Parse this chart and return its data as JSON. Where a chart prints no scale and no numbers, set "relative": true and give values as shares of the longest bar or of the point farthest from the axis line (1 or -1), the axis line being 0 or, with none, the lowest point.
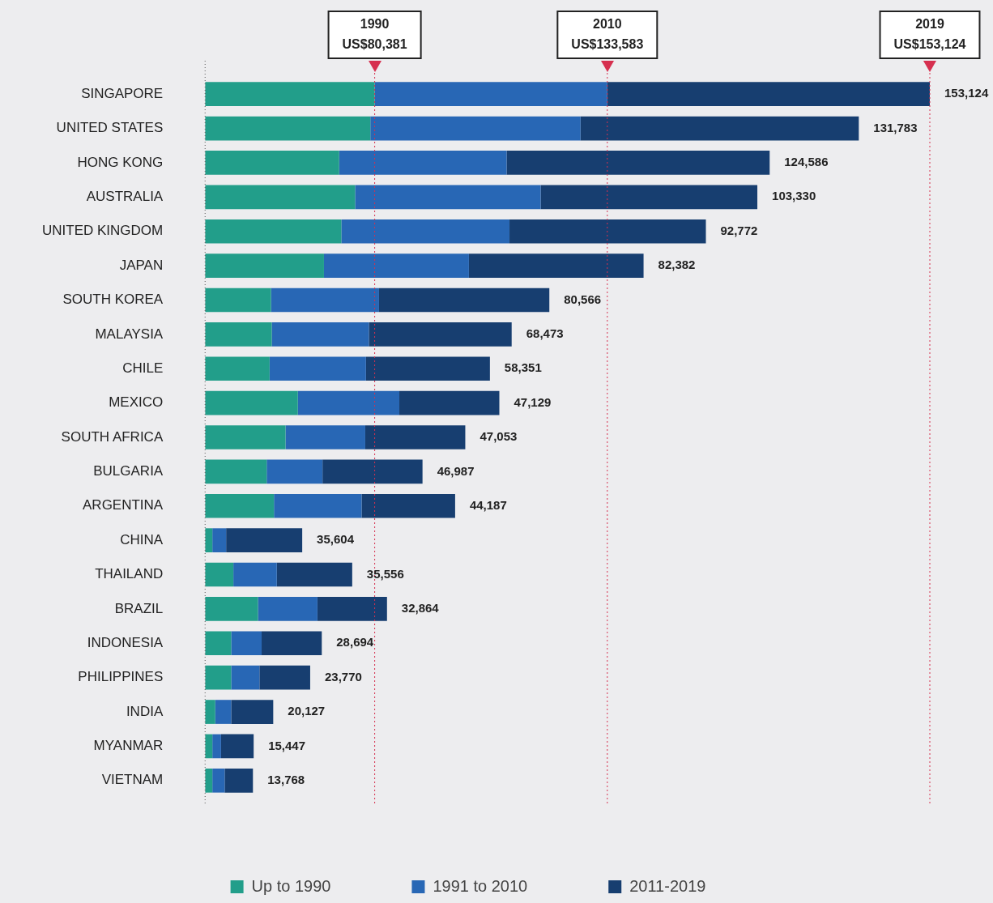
{
  "chart_data": {
    "type": "bar",
    "orientation": "horizontal",
    "stacked": true,
    "relative": true,
    "categories": [
      "SINGAPORE",
      "UNITED STATES",
      "HONG KONG",
      "AUSTRALIA",
      "UNITED KINGDOM",
      "JAPAN",
      "SOUTH KOREA",
      "MALAYSIA",
      "CHILE",
      "MEXICO",
      "SOUTH AFRICA",
      "BULGARIA",
      "ARGENTINA",
      "CHINA",
      "THAILAND",
      "BRAZIL",
      "INDONESIA",
      "PHILIPPINES",
      "INDIA",
      "MYANMAR",
      "VIETNAM"
    ],
    "series": [
      {
        "name": "Up to 1990",
        "color": "#229e8a",
        "values": [
          0.234,
          0.228,
          0.185,
          0.207,
          0.188,
          0.164,
          0.091,
          0.092,
          0.089,
          0.128,
          0.111,
          0.085,
          0.095,
          0.01,
          0.039,
          0.073,
          0.036,
          0.036,
          0.014,
          0.01,
          0.01
        ]
      },
      {
        "name": "1991 to 2010",
        "color": "#2867b5",
        "values": [
          0.321,
          0.29,
          0.231,
          0.256,
          0.232,
          0.2,
          0.149,
          0.134,
          0.133,
          0.14,
          0.11,
          0.077,
          0.121,
          0.019,
          0.06,
          0.082,
          0.042,
          0.039,
          0.022,
          0.012,
          0.017
        ]
      },
      {
        "name": "2011-2019",
        "color": "#173e70",
        "values": [
          0.445,
          0.384,
          0.363,
          0.299,
          0.271,
          0.241,
          0.235,
          0.197,
          0.171,
          0.138,
          0.138,
          0.138,
          0.129,
          0.105,
          0.104,
          0.096,
          0.083,
          0.07,
          0.058,
          0.045,
          0.039
        ]
      }
    ],
    "annotations": [
      {
        "text": "153,124",
        "x": 1.0,
        "y": "SINGAPORE"
      },
      {
        "text": "131,783",
        "x": 0.902,
        "y": "UNITED STATES"
      },
      {
        "text": "124,586",
        "x": 0.779,
        "y": "HONG KONG"
      },
      {
        "text": "103,330",
        "x": 0.762,
        "y": "AUSTRALIA"
      },
      {
        "text": "92,772",
        "x": 0.691,
        "y": "UNITED KINGDOM"
      },
      {
        "text": "82,382",
        "x": 0.605,
        "y": "JAPAN"
      },
      {
        "text": "80,566",
        "x": 0.475,
        "y": "SOUTH KOREA"
      },
      {
        "text": "68,473",
        "x": 0.423,
        "y": "MALAYSIA"
      },
      {
        "text": "58,351",
        "x": 0.393,
        "y": "CHILE"
      },
      {
        "text": "47,129",
        "x": 0.406,
        "y": "MEXICO"
      },
      {
        "text": "47,053",
        "x": 0.359,
        "y": "SOUTH AFRICA"
      },
      {
        "text": "46,987",
        "x": 0.3,
        "y": "BULGARIA"
      },
      {
        "text": "44,187",
        "x": 0.345,
        "y": "ARGENTINA"
      },
      {
        "text": "35,604",
        "x": 0.134,
        "y": "CHINA"
      },
      {
        "text": "35,556",
        "x": 0.203,
        "y": "THAILAND"
      },
      {
        "text": "32,864",
        "x": 0.251,
        "y": "BRAZIL"
      },
      {
        "text": "28,694",
        "x": 0.161,
        "y": "INDONESIA"
      },
      {
        "text": "23,770",
        "x": 0.145,
        "y": "PHILIPPINES"
      },
      {
        "text": "20,127",
        "x": 0.094,
        "y": "INDIA"
      },
      {
        "text": "15,447",
        "x": 0.067,
        "y": "MYANMAR"
      },
      {
        "text": "13,768",
        "x": 0.066,
        "y": "VIETNAM"
      }
    ],
    "ref_lines": [
      {
        "axis": "x",
        "value": 0.234,
        "label": "1990\nUS$80,381",
        "color": "#d6304f",
        "line_style": "dotted"
      },
      {
        "axis": "x",
        "value": 0.555,
        "label": "2010\nUS$133,583",
        "color": "#d6304f",
        "line_style": "dotted"
      },
      {
        "axis": "x",
        "value": 1.0,
        "label": "2019\nUS$153,124",
        "color": "#d6304f",
        "line_style": "dotted"
      }
    ],
    "legend": "bottom"
  }
}
